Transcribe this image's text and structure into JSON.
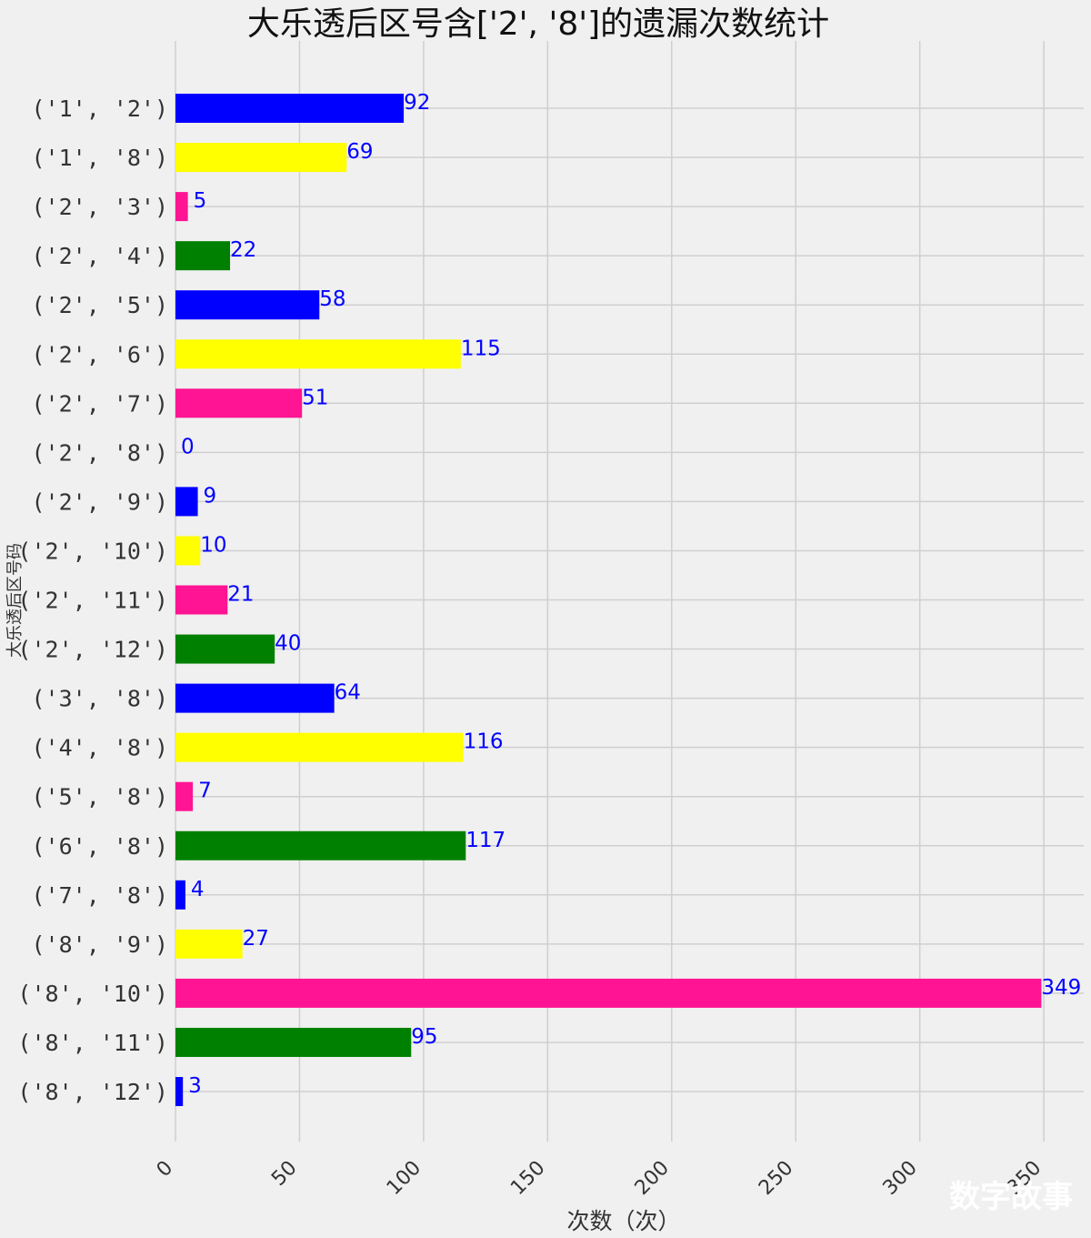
{
  "chart_data": {
    "type": "bar",
    "orientation": "horizontal",
    "title": "大乐透后区号含['2', '8']的遗漏次数统计",
    "xlabel": "次数（次）",
    "ylabel": "大乐透后区号码",
    "categories": [
      "('1', '2')",
      "('1', '8')",
      "('2', '3')",
      "('2', '4')",
      "('2', '5')",
      "('2', '6')",
      "('2', '7')",
      "('2', '8')",
      "('2', '9')",
      "('2', '10')",
      "('2', '11')",
      "('2', '12')",
      "('3', '8')",
      "('4', '8')",
      "('5', '8')",
      "('6', '8')",
      "('7', '8')",
      "('8', '9')",
      "('8', '10')",
      "('8', '11')",
      "('8', '12')"
    ],
    "values": [
      92,
      69,
      5,
      22,
      58,
      115,
      51,
      0,
      9,
      10,
      21,
      40,
      64,
      116,
      7,
      117,
      4,
      27,
      349,
      95,
      3
    ],
    "bar_colors": [
      "#0000ff",
      "#ffff00",
      "#ff1493",
      "#008000"
    ],
    "label_color": "#0000ff",
    "xlim": [
      0,
      380
    ],
    "x_ticks": [
      0,
      50,
      100,
      150,
      200,
      250,
      300,
      350
    ],
    "x_tick_labels": [
      "0",
      "50",
      "100",
      "150",
      "200",
      "250",
      "300",
      "350"
    ],
    "grid": true,
    "background": "#f0f0f0"
  },
  "watermark": "数字故事"
}
